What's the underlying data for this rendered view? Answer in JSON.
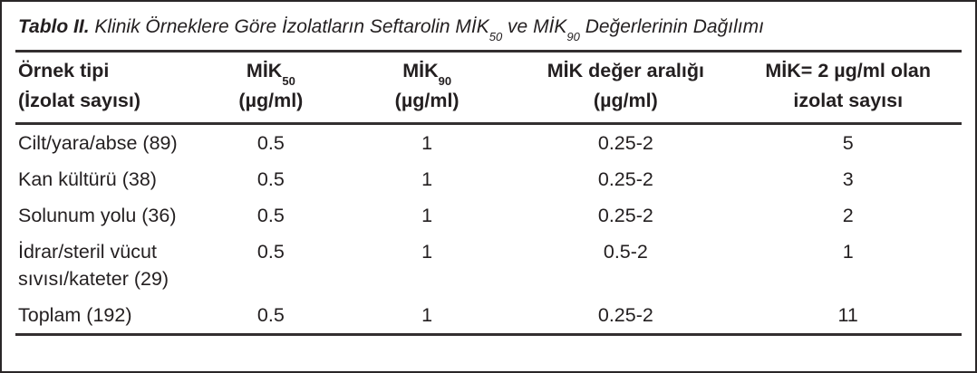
{
  "title": {
    "label": "Tablo II.",
    "text_1": " Klinik Örneklere Göre İzolatların Seftarolin MİK",
    "sub_1": "50",
    "text_2": " ve MİK",
    "sub_2": "90",
    "text_3": " Değerlerinin Dağılımı"
  },
  "table": {
    "headers": {
      "sample_type": {
        "line1": "Örnek tipi",
        "line2": "(İzolat sayısı)"
      },
      "mic50": {
        "base": "MİK",
        "sub": "50",
        "unit": "(µg/ml)"
      },
      "mic90": {
        "base": "MİK",
        "sub": "90",
        "unit": "(µg/ml)"
      },
      "mic_range": {
        "line1": "MİK değer aralığı",
        "line2": "(µg/ml)"
      },
      "isolates_mic2": {
        "line1": "MİK= 2 µg/ml olan",
        "line2": "izolat sayısı"
      }
    },
    "rows": [
      {
        "sample_type": "Cilt/yara/abse (89)",
        "mic50": "0.5",
        "mic90": "1",
        "mic_range": "0.25-2",
        "isolates_mic2": "5"
      },
      {
        "sample_type": "Kan kültürü (38)",
        "mic50": "0.5",
        "mic90": "1",
        "mic_range": "0.25-2",
        "isolates_mic2": "3"
      },
      {
        "sample_type": "Solunum yolu (36)",
        "mic50": "0.5",
        "mic90": "1",
        "mic_range": "0.25-2",
        "isolates_mic2": "2"
      },
      {
        "sample_type": "İdrar/steril vücut sıvısı/kateter (29)",
        "mic50": "0.5",
        "mic90": "1",
        "mic_range": "0.5-2",
        "isolates_mic2": "1"
      },
      {
        "sample_type": "Toplam (192)",
        "mic50": "0.5",
        "mic90": "1",
        "mic_range": "0.25-2",
        "isolates_mic2": "11"
      }
    ]
  },
  "colors": {
    "text": "#231f20",
    "rule": "#332f30",
    "border": "#2a2627",
    "background": "#ffffff"
  }
}
